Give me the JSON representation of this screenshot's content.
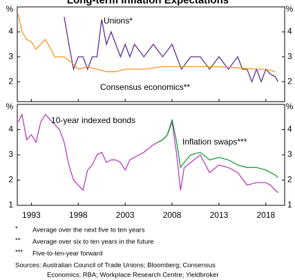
{
  "title": "Long-term Inflation Expectations",
  "chart_data": [
    {
      "type": "line",
      "unit": "%",
      "xlim": [
        1991.5,
        2020
      ],
      "ylim": [
        1.2,
        5
      ],
      "yticks": [
        2,
        3,
        4
      ],
      "series": [
        {
          "name": "Unions*",
          "color": "#5b2d90",
          "x": [
            1996.5,
            1997,
            1997.5,
            1998,
            1998.5,
            1999,
            1999.5,
            2000,
            2000.5,
            2001,
            2001.5,
            2002,
            2002.5,
            2003,
            2003.5,
            2004,
            2005,
            2006,
            2007,
            2008,
            2008.5,
            2009,
            2010,
            2011,
            2012,
            2013,
            2014,
            2015,
            2015.5,
            2016,
            2016.5,
            2017,
            2017.5,
            2018,
            2018.5,
            2019,
            2019.3
          ],
          "values": [
            4.6,
            3.5,
            2.5,
            3,
            3,
            2.5,
            3,
            3,
            4.5,
            3.5,
            4,
            3.5,
            3,
            3.5,
            3,
            3.5,
            3,
            3.5,
            3,
            3.5,
            3,
            2.5,
            3,
            3,
            2.5,
            3,
            2.5,
            3,
            2.5,
            2.5,
            2,
            2.5,
            2,
            2.5,
            2.3,
            2.2,
            2.0
          ]
        },
        {
          "name": "Consensus economics**",
          "color": "#f7941d",
          "x": [
            1991.6,
            1992,
            1992.5,
            1993,
            1993.5,
            1994.5,
            1995.5,
            1996.5,
            1997.5,
            1998,
            1999,
            2000,
            2001,
            2002,
            2003,
            2005,
            2007,
            2009,
            2011,
            2013,
            2015,
            2017,
            2018,
            2019
          ],
          "values": [
            4.7,
            4,
            3.7,
            3.6,
            3.3,
            3.7,
            3,
            3,
            2.7,
            2.5,
            2.6,
            2.5,
            2.4,
            2.4,
            2.5,
            2.5,
            2.6,
            2.6,
            2.6,
            2.6,
            2.55,
            2.5,
            2.5,
            2.4
          ]
        }
      ]
    },
    {
      "type": "line",
      "unit": "%",
      "xlim": [
        1991.5,
        2020
      ],
      "ylim": [
        1,
        5
      ],
      "yticks": [
        1,
        2,
        3,
        4
      ],
      "xticks": [
        1993,
        1998,
        2003,
        2008,
        2013,
        2018
      ],
      "series": [
        {
          "name": "10-year indexed bonds",
          "color": "#b73cbf",
          "x": [
            1991.6,
            1992,
            1992.5,
            1993,
            1993.5,
            1994,
            1994.5,
            1995,
            1995.5,
            1996,
            1996.5,
            1997,
            1997.5,
            1998,
            1998.5,
            1999,
            1999.5,
            2000,
            2000.5,
            2001,
            2001.5,
            2002,
            2002.5,
            2003,
            2003.5,
            2004,
            2005,
            2006,
            2007,
            2007.5,
            2008,
            2008.5,
            2008.9,
            2009.3,
            2010,
            2011,
            2012,
            2013,
            2014,
            2015,
            2016,
            2017,
            2018,
            2018.5,
            2019,
            2019.3
          ],
          "values": [
            4.3,
            4.6,
            3.6,
            3.8,
            3.5,
            4.3,
            4.6,
            4.4,
            4.2,
            4,
            3.5,
            2.6,
            2.0,
            1.8,
            1.6,
            2.4,
            2.6,
            3.0,
            3.1,
            2.7,
            2.8,
            2.8,
            2.7,
            2.4,
            2.8,
            2.9,
            3.1,
            3.4,
            3.6,
            3.8,
            4.3,
            3.0,
            1.6,
            2.5,
            2.7,
            3.0,
            2.3,
            2.6,
            2.5,
            2.3,
            1.8,
            1.9,
            1.9,
            1.8,
            1.6,
            1.5
          ]
        },
        {
          "name": "Inflation swaps***",
          "color": "#1a9e3b",
          "x": [
            2006.5,
            2007,
            2007.5,
            2008,
            2008.5,
            2008.9,
            2009.5,
            2010,
            2011,
            2012,
            2013,
            2014,
            2015,
            2016,
            2017,
            2018,
            2019,
            2019.3
          ],
          "values": [
            3.5,
            3.6,
            3.8,
            4.4,
            3.5,
            2.5,
            2.8,
            3.0,
            3.1,
            2.8,
            2.9,
            2.8,
            2.6,
            2.5,
            2.5,
            2.4,
            2.2,
            2.1
          ]
        }
      ]
    }
  ],
  "footnotes": [
    {
      "marker": "*",
      "text": "Average over the next five to ten years"
    },
    {
      "marker": "**",
      "text": "Average over six to ten years in the future"
    },
    {
      "marker": "***",
      "text": "Five-to-ten-year forward"
    }
  ],
  "sources": [
    "Sources: Australian Council of Trade Unions; Bloomberg; Consensus",
    "Economics; RBA; Workplace Research Centre; Yieldbroker"
  ]
}
